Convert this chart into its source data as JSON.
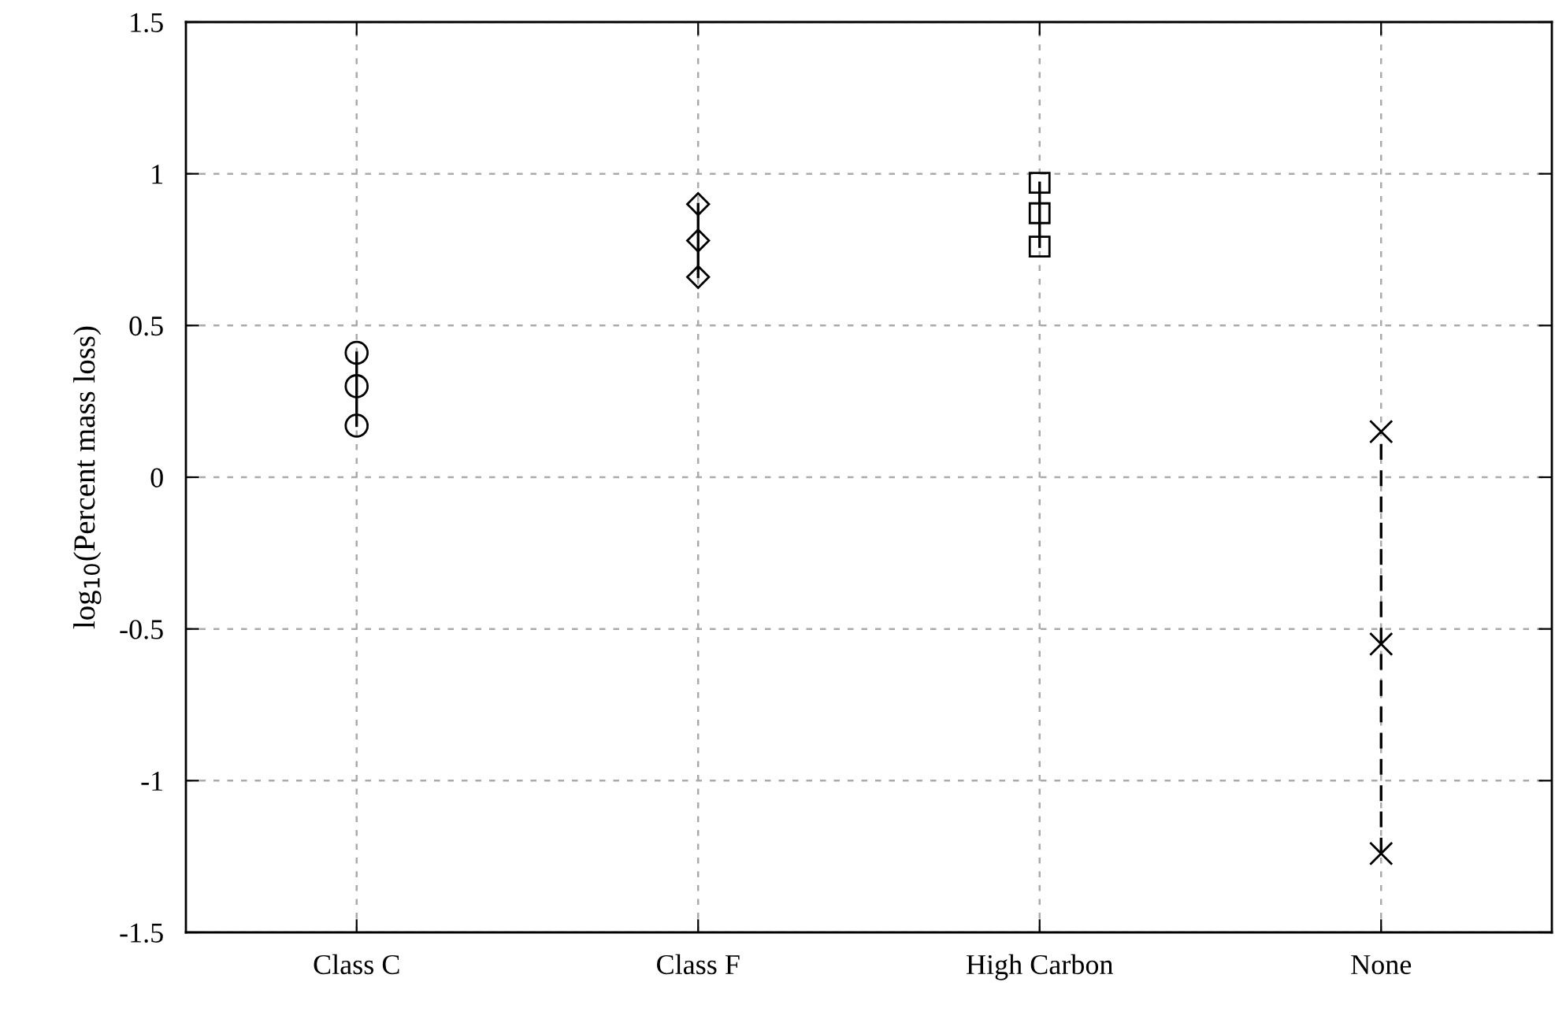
{
  "chart_data": {
    "type": "line",
    "ylabel": "log$_{10}$(Percent mass loss)",
    "categories": [
      "Class C",
      "Class F",
      "High Carbon",
      "None"
    ],
    "series": [
      {
        "color": "#000000",
        "marker": "circle",
        "line_style": "solid",
        "x": [
          "Class C",
          "Class C",
          "Class C"
        ],
        "values": [
          0.17,
          0.3,
          0.41
        ]
      },
      {
        "color": "#000000",
        "marker": "diamond",
        "line_style": "solid",
        "x": [
          "Class F",
          "Class F",
          "Class F"
        ],
        "values": [
          0.66,
          0.78,
          0.9
        ]
      },
      {
        "color": "#000000",
        "marker": "square",
        "line_style": "solid",
        "x": [
          "High Carbon",
          "High Carbon",
          "High Carbon"
        ],
        "values": [
          0.76,
          0.87,
          0.97
        ]
      },
      {
        "color": "#000000",
        "marker": "cross",
        "line_style": "dashed",
        "x": [
          "None",
          "None",
          "None"
        ],
        "values": [
          -1.24,
          -0.55,
          0.15
        ]
      }
    ],
    "ylim": [
      -1.5,
      1.5
    ],
    "yticks": [
      -1.5,
      -1,
      -0.5,
      0,
      0.5,
      1,
      1.5
    ],
    "grid": true
  }
}
